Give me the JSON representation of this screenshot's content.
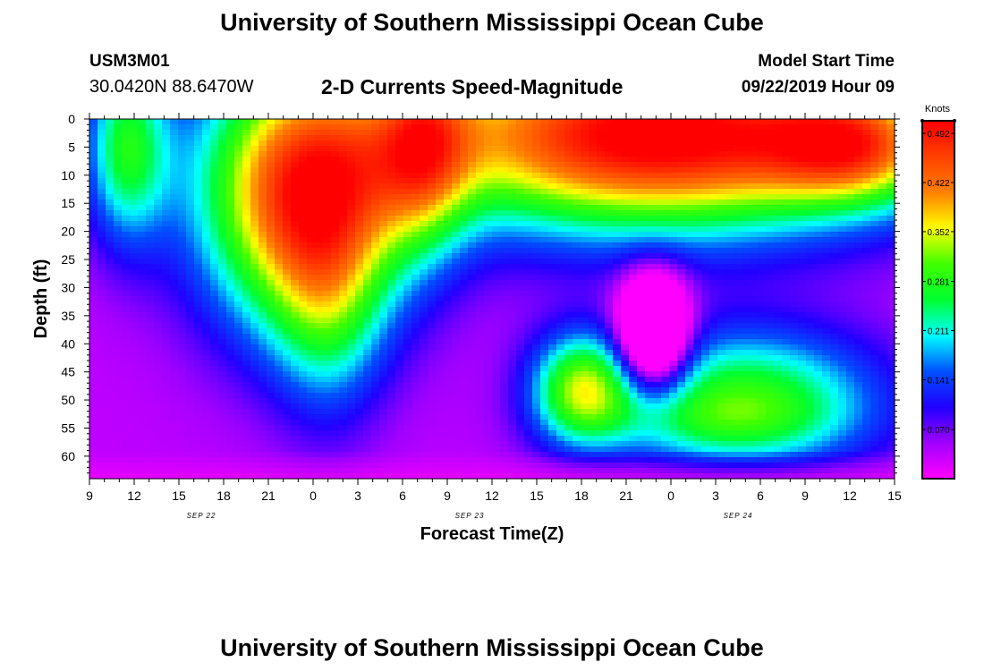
{
  "header": {
    "title": "University of Southern Mississippi Ocean Cube",
    "station_id": "USM3M01",
    "coordinates": "30.0420N 88.6470W",
    "subtitle": "2-D Currents Speed-Magnitude",
    "model_start_label": "Model Start Time",
    "model_start_value": "09/22/2019 Hour 09"
  },
  "footer": {
    "title": "University of Southern Mississippi Ocean Cube"
  },
  "chart_data": {
    "type": "heatmap",
    "xlabel": "Forecast Time(Z)",
    "ylabel": "Depth (ft)",
    "x_ticks": [
      "9",
      "12",
      "15",
      "18",
      "21",
      "0",
      "3",
      "6",
      "9",
      "12",
      "15",
      "18",
      "21",
      "0",
      "3",
      "6",
      "9",
      "12",
      "15"
    ],
    "date_labels": [
      {
        "text": "SEP 22",
        "tick_index": 2.5
      },
      {
        "text": "SEP 23",
        "tick_index": 8.5
      },
      {
        "text": "SEP 24",
        "tick_index": 14.5
      }
    ],
    "y_ticks": [
      0,
      5,
      10,
      15,
      20,
      25,
      30,
      35,
      40,
      45,
      50,
      55,
      60
    ],
    "ylim": [
      0,
      64
    ],
    "x_range_hours": [
      0,
      54
    ],
    "colorbar": {
      "units": "Knots",
      "tick_values": [
        "0.492",
        "0.422",
        "0.352",
        "0.281",
        "0.211",
        "0.141",
        "0.070"
      ],
      "range": [
        0.0,
        0.51
      ],
      "colors": [
        "#ff00ff",
        "#a000ff",
        "#2000ff",
        "#0050ff",
        "#00ffff",
        "#00ff30",
        "#40ff00",
        "#ffff00",
        "#ff8000",
        "#ff4000",
        "#ff0000"
      ]
    },
    "field_model": {
      "description_units": "speed in knots as a function of forecast hour (0-54 from Sep 22 09Z) and depth in ft (0-64)",
      "blobs": [
        {
          "t": 14.5,
          "d": 14,
          "st": 5.0,
          "sd": 17,
          "amp": 0.42
        },
        {
          "t": 16.0,
          "d": 35,
          "st": 2.6,
          "sd": 14,
          "amp": 0.12
        },
        {
          "t": 2.5,
          "d": 5,
          "st": 2.0,
          "sd": 12,
          "amp": 0.22
        },
        {
          "t": 22.5,
          "d": 5,
          "st": 2.2,
          "sd": 12,
          "amp": 0.18
        },
        {
          "t": 38.0,
          "d": 3,
          "st": 12.0,
          "sd": 12,
          "amp": 0.5
        },
        {
          "t": 51.5,
          "d": 5,
          "st": 4.0,
          "sd": 7,
          "amp": 0.22
        },
        {
          "t": 33.0,
          "d": 48,
          "st": 2.4,
          "sd": 7,
          "amp": 0.26
        },
        {
          "t": 44.0,
          "d": 50,
          "st": 6.5,
          "sd": 9,
          "amp": 0.25
        },
        {
          "t": 41.5,
          "d": 54,
          "st": 6.0,
          "sd": 4,
          "amp": 0.05
        }
      ],
      "holes": [
        {
          "t": 37.8,
          "d": 38,
          "st": 1.6,
          "sd": 7,
          "amp": 0.32
        }
      ],
      "base": 0.035,
      "bottom_taper_depth": 59
    }
  }
}
